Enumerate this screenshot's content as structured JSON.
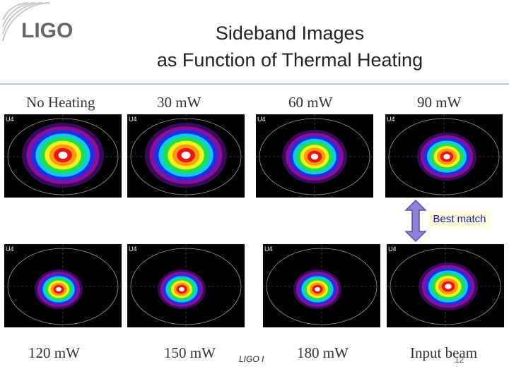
{
  "header": {
    "logo_text": "LIGO",
    "title_line1": "Sideband Images",
    "title_line2": "as Function of Thermal Heating"
  },
  "images": [
    {
      "label": "No Heating",
      "spot": "broad",
      "tag": "U4"
    },
    {
      "label": "30 mW",
      "spot": "broad",
      "tag": "U4"
    },
    {
      "label": "60 mW",
      "spot": "medium",
      "tag": "U4"
    },
    {
      "label": "90 mW",
      "spot": "small",
      "tag": "U4"
    },
    {
      "label": "120 mW",
      "spot": "tight",
      "tag": "U4"
    },
    {
      "label": "150 mW",
      "spot": "tight",
      "tag": "U4"
    },
    {
      "label": "180 mW",
      "spot": "tight",
      "tag": "U4"
    },
    {
      "label": "Input beam",
      "spot": "small",
      "tag": "U4"
    }
  ],
  "annotation": {
    "best_match_text": "Best match",
    "arrow_color": "#8f7fd6"
  },
  "footer": {
    "mark": "LIGO I",
    "page_number": "12"
  },
  "colors": {
    "rule": "#b9c4de",
    "badge_text": "#1a1a8c"
  }
}
